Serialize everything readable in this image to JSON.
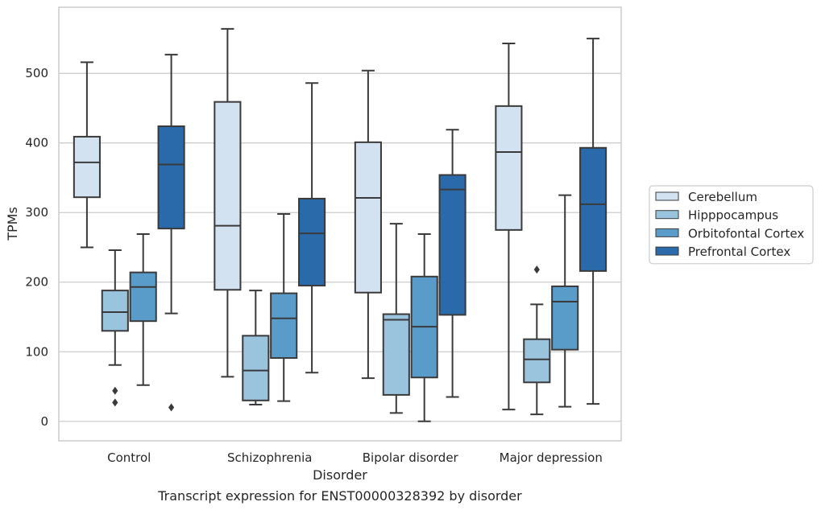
{
  "chart_data": {
    "type": "box",
    "xlabel": "Disorder",
    "ylabel": "TPMs",
    "caption": "Transcript expression for ENST00000328392 by disorder",
    "ylim": [
      -28,
      595
    ],
    "yticks": [
      0,
      100,
      200,
      300,
      400,
      500
    ],
    "grid": "horizontal",
    "legend_position": "right",
    "categories": [
      "Control",
      "Schizophrenia",
      "Bipolar disorder",
      "Major depression"
    ],
    "series": [
      {
        "name": "Cerebellum",
        "color": "#d3e2f1",
        "boxes": [
          {
            "whisker_low": 250,
            "q1": 322,
            "median": 372,
            "q3": 409,
            "whisker_high": 516,
            "outliers": []
          },
          {
            "whisker_low": 64,
            "q1": 189,
            "median": 281,
            "q3": 459,
            "whisker_high": 564,
            "outliers": []
          },
          {
            "whisker_low": 62,
            "q1": 185,
            "median": 321,
            "q3": 401,
            "whisker_high": 504,
            "outliers": []
          },
          {
            "whisker_low": 17,
            "q1": 275,
            "median": 387,
            "q3": 453,
            "whisker_high": 543,
            "outliers": []
          }
        ]
      },
      {
        "name": "Hipppocampus",
        "color": "#9ac3de",
        "boxes": [
          {
            "whisker_low": 81,
            "q1": 130,
            "median": 157,
            "q3": 188,
            "whisker_high": 246,
            "outliers": [
              44,
              27
            ]
          },
          {
            "whisker_low": 24,
            "q1": 30,
            "median": 73,
            "q3": 123,
            "whisker_high": 188,
            "outliers": []
          },
          {
            "whisker_low": 12,
            "q1": 38,
            "median": 146,
            "q3": 154,
            "whisker_high": 284,
            "outliers": []
          },
          {
            "whisker_low": 10,
            "q1": 56,
            "median": 89,
            "q3": 118,
            "whisker_high": 168,
            "outliers": [
              218
            ]
          }
        ]
      },
      {
        "name": "Orbitofontal Cortex",
        "color": "#5a9cc9",
        "boxes": [
          {
            "whisker_low": 52,
            "q1": 144,
            "median": 193,
            "q3": 214,
            "whisker_high": 269,
            "outliers": []
          },
          {
            "whisker_low": 29,
            "q1": 91,
            "median": 148,
            "q3": 184,
            "whisker_high": 298,
            "outliers": []
          },
          {
            "whisker_low": 0,
            "q1": 63,
            "median": 136,
            "q3": 208,
            "whisker_high": 269,
            "outliers": []
          },
          {
            "whisker_low": 21,
            "q1": 103,
            "median": 172,
            "q3": 194,
            "whisker_high": 325,
            "outliers": []
          }
        ]
      },
      {
        "name": "Prefrontal Cortex",
        "color": "#2a6aaa",
        "boxes": [
          {
            "whisker_low": 155,
            "q1": 277,
            "median": 369,
            "q3": 424,
            "whisker_high": 527,
            "outliers": [
              20
            ]
          },
          {
            "whisker_low": 70,
            "q1": 195,
            "median": 270,
            "q3": 320,
            "whisker_high": 486,
            "outliers": []
          },
          {
            "whisker_low": 35,
            "q1": 153,
            "median": 333,
            "q3": 354,
            "whisker_high": 419,
            "outliers": []
          },
          {
            "whisker_low": 25,
            "q1": 216,
            "median": 312,
            "q3": 393,
            "whisker_high": 550,
            "outliers": []
          }
        ]
      }
    ]
  }
}
